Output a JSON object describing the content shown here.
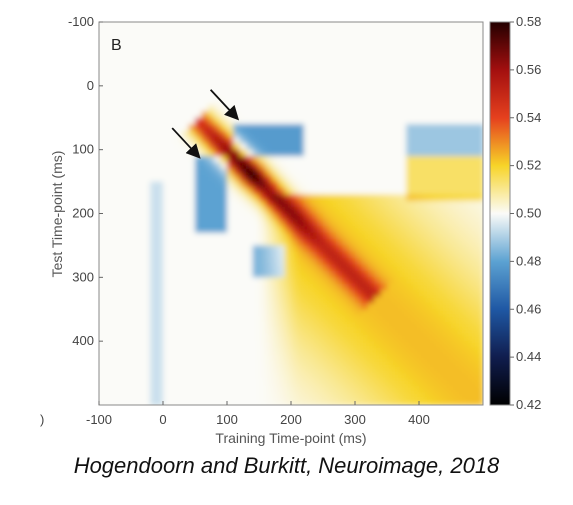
{
  "chart_data": {
    "type": "heatmap",
    "panel_label": "B",
    "xlabel": "Training Time-point (ms)",
    "ylabel": "Test Time-point (ms)",
    "xlim": [
      -100,
      500
    ],
    "ylim": [
      -100,
      500
    ],
    "y_inverted": true,
    "x_ticks": [
      -100,
      0,
      100,
      200,
      300,
      400
    ],
    "y_ticks": [
      -100,
      0,
      100,
      200,
      300,
      400
    ],
    "x_stray_tick_label": ")",
    "colorbar": {
      "min": 0.42,
      "max": 0.58,
      "ticks": [
        "0.42",
        "0.44",
        "0.46",
        "0.48",
        "0.50",
        "0.52",
        "0.54",
        "0.56",
        "0.58"
      ],
      "stops": [
        {
          "value": 0.42,
          "color": "#000000"
        },
        {
          "value": 0.44,
          "color": "#101d4e"
        },
        {
          "value": 0.46,
          "color": "#1f58a4"
        },
        {
          "value": 0.48,
          "color": "#5ca2d2"
        },
        {
          "value": 0.5,
          "color": "#fbfbf8"
        },
        {
          "value": 0.52,
          "color": "#f7d428"
        },
        {
          "value": 0.54,
          "color": "#e5401e"
        },
        {
          "value": 0.56,
          "color": "#a30f0f"
        },
        {
          "value": 0.58,
          "color": "#240000"
        }
      ]
    },
    "diagonal_peak": {
      "value": 0.58,
      "train_ms": 140,
      "test_ms": 140
    },
    "arrows_at_ms": [
      {
        "x": 55,
        "y": 110
      },
      {
        "x": 115,
        "y": 50
      }
    ]
  },
  "citation": "Hogendoorn and Burkitt, Neuroimage, 2018"
}
